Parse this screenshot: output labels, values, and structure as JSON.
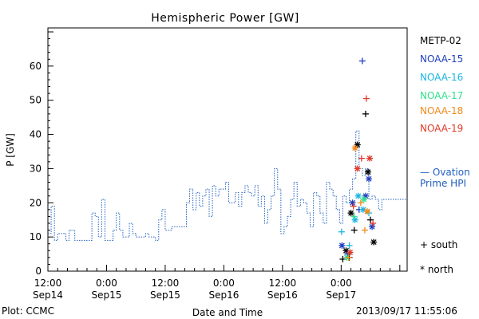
{
  "chart_data": {
    "type": "line",
    "title": "Hemispheric Power [GW]",
    "xlabel": "Date and Time",
    "ylabel": "P [GW]",
    "ylim": [
      0,
      70
    ],
    "xlim": [
      "2013-09-14T12:00",
      "2013-09-17T13:30"
    ],
    "yticks": [
      0,
      10,
      20,
      30,
      40,
      50,
      60
    ],
    "xticks": [
      {
        "t": "2013-09-14T12:00",
        "line1": "12:00",
        "line2": "Sep14"
      },
      {
        "t": "2013-09-15T00:00",
        "line1": "0:00",
        "line2": "Sep15"
      },
      {
        "t": "2013-09-15T12:00",
        "line1": "12:00",
        "line2": "Sep15"
      },
      {
        "t": "2013-09-16T00:00",
        "line1": "0:00",
        "line2": "Sep16"
      },
      {
        "t": "2013-09-16T12:00",
        "line1": "12:00",
        "line2": "Sep16"
      },
      {
        "t": "2013-09-17T00:00",
        "line1": "0:00",
        "line2": "Sep17"
      }
    ],
    "ovation": {
      "name": "— Ovation Prime HPI",
      "color": "#1f5fbf",
      "points": [
        [
          "2013-09-14T12:00",
          11
        ],
        [
          "2013-09-14T12:40",
          19
        ],
        [
          "2013-09-14T13:20",
          9
        ],
        [
          "2013-09-14T14:00",
          11
        ],
        [
          "2013-09-14T15:40",
          9
        ],
        [
          "2013-09-14T16:20",
          12
        ],
        [
          "2013-09-14T17:30",
          9
        ],
        [
          "2013-09-14T21:00",
          17
        ],
        [
          "2013-09-14T21:40",
          16
        ],
        [
          "2013-09-14T22:20",
          10
        ],
        [
          "2013-09-14T23:00",
          21
        ],
        [
          "2013-09-14T23:40",
          9
        ],
        [
          "2013-09-15T01:20",
          12
        ],
        [
          "2013-09-15T02:00",
          17
        ],
        [
          "2013-09-15T02:40",
          12
        ],
        [
          "2013-09-15T03:20",
          10
        ],
        [
          "2013-09-15T04:40",
          14
        ],
        [
          "2013-09-15T05:20",
          11
        ],
        [
          "2013-09-15T06:00",
          10
        ],
        [
          "2013-09-15T07:20",
          10
        ],
        [
          "2013-09-15T08:00",
          11
        ],
        [
          "2013-09-15T08:40",
          10
        ],
        [
          "2013-09-15T09:20",
          10
        ],
        [
          "2013-09-15T10:00",
          9
        ],
        [
          "2013-09-15T10:40",
          15
        ],
        [
          "2013-09-15T11:20",
          18
        ],
        [
          "2013-09-15T12:00",
          12
        ],
        [
          "2013-09-15T13:20",
          13
        ],
        [
          "2013-09-15T16:20",
          20
        ],
        [
          "2013-09-15T17:00",
          24
        ],
        [
          "2013-09-15T17:40",
          18
        ],
        [
          "2013-09-15T18:20",
          23
        ],
        [
          "2013-09-15T19:00",
          19
        ],
        [
          "2013-09-15T19:40",
          22
        ],
        [
          "2013-09-15T20:20",
          24
        ],
        [
          "2013-09-15T21:00",
          16
        ],
        [
          "2013-09-15T21:40",
          25
        ],
        [
          "2013-09-15T22:20",
          22
        ],
        [
          "2013-09-15T23:00",
          24
        ],
        [
          "2013-09-16T00:20",
          26
        ],
        [
          "2013-09-16T01:00",
          20
        ],
        [
          "2013-09-16T02:20",
          23
        ],
        [
          "2013-09-16T03:00",
          19
        ],
        [
          "2013-09-16T03:40",
          23
        ],
        [
          "2013-09-16T04:20",
          25
        ],
        [
          "2013-09-16T05:00",
          23
        ],
        [
          "2013-09-16T05:40",
          22
        ],
        [
          "2013-09-16T06:20",
          25
        ],
        [
          "2013-09-16T07:00",
          19
        ],
        [
          "2013-09-16T07:40",
          22
        ],
        [
          "2013-09-16T08:20",
          14
        ],
        [
          "2013-09-16T09:00",
          18
        ],
        [
          "2013-09-16T09:40",
          22
        ],
        [
          "2013-09-16T10:20",
          30
        ],
        [
          "2013-09-16T11:00",
          24
        ],
        [
          "2013-09-16T11:40",
          11
        ],
        [
          "2013-09-16T12:20",
          13
        ],
        [
          "2013-09-16T13:00",
          16
        ],
        [
          "2013-09-16T13:40",
          21
        ],
        [
          "2013-09-16T14:20",
          26
        ],
        [
          "2013-09-16T15:00",
          19
        ],
        [
          "2013-09-16T15:40",
          21
        ],
        [
          "2013-09-16T16:20",
          20
        ],
        [
          "2013-09-16T17:00",
          17
        ],
        [
          "2013-09-16T17:40",
          13
        ],
        [
          "2013-09-16T18:20",
          23
        ],
        [
          "2013-09-16T19:00",
          22
        ],
        [
          "2013-09-16T19:40",
          17
        ],
        [
          "2013-09-16T20:20",
          14
        ],
        [
          "2013-09-16T21:00",
          26
        ],
        [
          "2013-09-16T21:40",
          24
        ],
        [
          "2013-09-16T22:20",
          22
        ],
        [
          "2013-09-16T23:00",
          18
        ],
        [
          "2013-09-16T23:40",
          14
        ],
        [
          "2013-09-17T00:20",
          22
        ],
        [
          "2013-09-17T01:00",
          20
        ],
        [
          "2013-09-17T01:40",
          24
        ],
        [
          "2013-09-17T02:20",
          27
        ],
        [
          "2013-09-17T03:00",
          41
        ],
        [
          "2013-09-17T03:40",
          30
        ],
        [
          "2013-09-17T04:20",
          28
        ],
        [
          "2013-09-17T05:00",
          30
        ],
        [
          "2013-09-17T05:40",
          21
        ],
        [
          "2013-09-17T06:20",
          22
        ],
        [
          "2013-09-17T07:00",
          21
        ],
        [
          "2013-09-17T07:40",
          18
        ],
        [
          "2013-09-17T08:20",
          21
        ]
      ]
    },
    "satellites": [
      {
        "name": "METP-02",
        "color": "#000000",
        "points": [
          [
            "2013-09-17T00:20",
            3.5,
            "south"
          ],
          [
            "2013-09-17T01:00",
            6,
            "north"
          ],
          [
            "2013-09-17T01:40",
            4,
            "south"
          ],
          [
            "2013-09-17T02:00",
            17,
            "north"
          ],
          [
            "2013-09-17T02:40",
            12,
            "south"
          ],
          [
            "2013-09-17T03:20",
            37,
            "north"
          ],
          [
            "2013-09-17T05:00",
            46,
            "south"
          ],
          [
            "2013-09-17T05:30",
            29,
            "north"
          ],
          [
            "2013-09-17T06:00",
            15,
            "south"
          ],
          [
            "2013-09-17T06:40",
            8.5,
            "north"
          ]
        ]
      },
      {
        "name": "NOAA-15",
        "color": "#1f3fbf",
        "points": [
          [
            "2013-09-17T00:10",
            7.5,
            "north"
          ],
          [
            "2013-09-17T01:20",
            5,
            "south"
          ],
          [
            "2013-09-17T02:20",
            20,
            "north"
          ],
          [
            "2013-09-17T03:40",
            18,
            "south"
          ],
          [
            "2013-09-17T04:20",
            61.5,
            "south"
          ],
          [
            "2013-09-17T05:00",
            22,
            "north"
          ],
          [
            "2013-09-17T05:40",
            27,
            "north"
          ],
          [
            "2013-09-17T06:20",
            13,
            "north"
          ]
        ]
      },
      {
        "name": "NOAA-16",
        "color": "#18b6e0",
        "points": [
          [
            "2013-09-17T00:05",
            11.5,
            "south"
          ],
          [
            "2013-09-17T01:40",
            7.5,
            "south"
          ],
          [
            "2013-09-17T02:50",
            15,
            "north"
          ],
          [
            "2013-09-17T03:30",
            22,
            "north"
          ],
          [
            "2013-09-17T04:30",
            18,
            "north"
          ],
          [
            "2013-09-17T05:40",
            17,
            "south"
          ]
        ]
      },
      {
        "name": "NOAA-17",
        "color": "#2ee08a",
        "points": [
          [
            "2013-09-17T01:10",
            4,
            "north"
          ],
          [
            "2013-09-17T02:40",
            16,
            "south"
          ],
          [
            "2013-09-17T04:40",
            21,
            "north"
          ]
        ]
      },
      {
        "name": "NOAA-18",
        "color": "#f08a1c",
        "points": [
          [
            "2013-09-17T01:30",
            4,
            "south"
          ],
          [
            "2013-09-17T02:50",
            36,
            "north"
          ],
          [
            "2013-09-17T04:00",
            20,
            "south"
          ],
          [
            "2013-09-17T04:50",
            12,
            "south"
          ],
          [
            "2013-09-17T05:20",
            17.5,
            "north"
          ]
        ]
      },
      {
        "name": "NOAA-19",
        "color": "#e03a2a",
        "points": [
          [
            "2013-09-17T01:50",
            5.5,
            "north"
          ],
          [
            "2013-09-17T02:30",
            19,
            "south"
          ],
          [
            "2013-09-17T03:20",
            30,
            "north"
          ],
          [
            "2013-09-17T04:10",
            33,
            "south"
          ],
          [
            "2013-09-17T05:10",
            50.5,
            "south"
          ],
          [
            "2013-09-17T05:50",
            33,
            "north"
          ],
          [
            "2013-09-17T06:30",
            14,
            "south"
          ]
        ]
      }
    ],
    "markers": {
      "south": "+ south",
      "north": "* north"
    },
    "grid": false
  },
  "footer": {
    "credit": "Plot: CCMC",
    "timestamp": "2013/09/17 11:55:06"
  }
}
